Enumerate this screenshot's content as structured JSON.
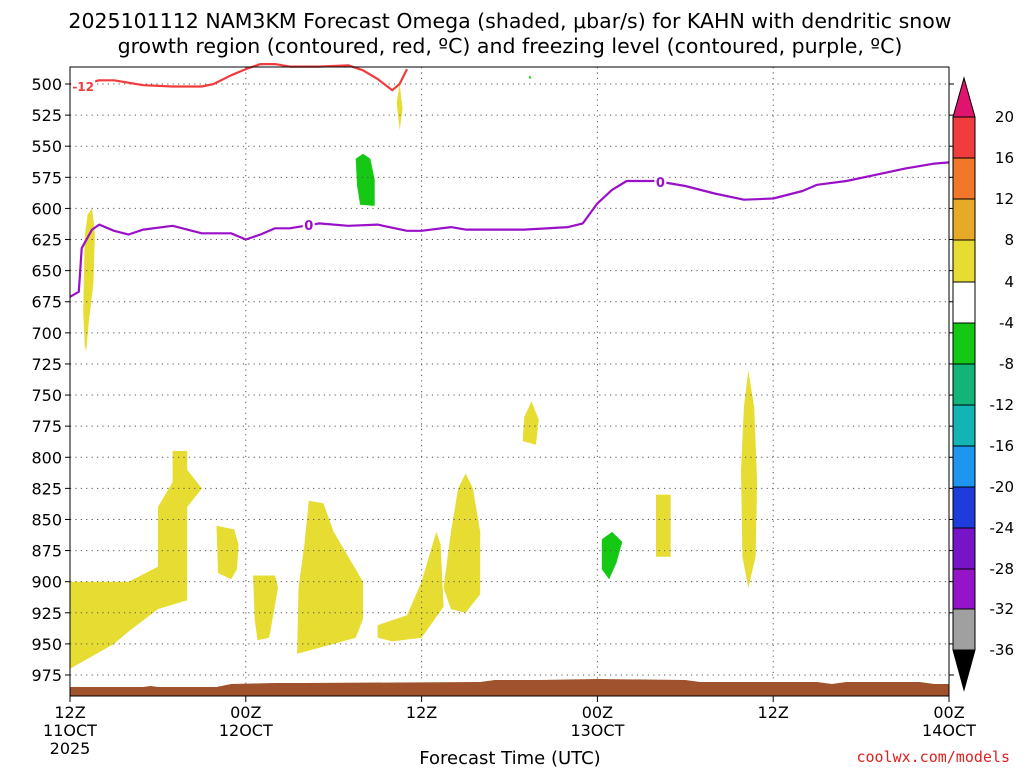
{
  "title_line1": "2025101112 NAM3KM Forecast Omega (shaded, μbar/s) for KAHN with dendritic snow",
  "title_line2": "growth region (contoured, red, ºC) and freezing level (contoured, purple, ºC)",
  "x_axis_title": "Forecast Time (UTC)",
  "credit": "coolwx.com/models",
  "chart_data": {
    "type": "time-height cross section",
    "y_axis": "pressure (mb), inverted",
    "y_ticks": [
      500,
      525,
      550,
      575,
      600,
      625,
      650,
      675,
      700,
      725,
      750,
      775,
      800,
      825,
      850,
      875,
      900,
      925,
      950,
      975
    ],
    "x_range_hours": [
      0,
      60
    ],
    "x_ticks": [
      {
        "hour": 0,
        "line1": "12Z",
        "line2": "11OCT",
        "line3": "2025"
      },
      {
        "hour": 12,
        "line1": "00Z",
        "line2": "12OCT",
        "line3": ""
      },
      {
        "hour": 24,
        "line1": "12Z",
        "line2": "",
        "line3": ""
      },
      {
        "hour": 36,
        "line1": "00Z",
        "line2": "13OCT",
        "line3": ""
      },
      {
        "hour": 48,
        "line1": "12Z",
        "line2": "",
        "line3": ""
      },
      {
        "hour": 60,
        "line1": "00Z",
        "line2": "14OCT",
        "line3": ""
      }
    ],
    "colorbar": {
      "labels": [
        "20",
        "16",
        "12",
        "8",
        "4",
        "-4",
        "-8",
        "-12",
        "-16",
        "-20",
        "-24",
        "-28",
        "-32",
        "-36"
      ],
      "colors": [
        "#e0146e",
        "#f03c3c",
        "#f07828",
        "#e6aa28",
        "#e6dc32",
        "#ffffff",
        "#14c814",
        "#14b478",
        "#14b4b4",
        "#1e96f0",
        "#1e3cdc",
        "#7814c8",
        "#9614c8",
        "#a0a0a0",
        "#000000"
      ]
    },
    "freezing_level": {
      "label": "0",
      "color": "#9a10c8",
      "points": [
        [
          0,
          671
        ],
        [
          0.6,
          667
        ],
        [
          0.8,
          632
        ],
        [
          1.5,
          617
        ],
        [
          2,
          613
        ],
        [
          3,
          618
        ],
        [
          4,
          621
        ],
        [
          5,
          617
        ],
        [
          7,
          614
        ],
        [
          9,
          620
        ],
        [
          11,
          620
        ],
        [
          12,
          625
        ],
        [
          13,
          621
        ],
        [
          14,
          616
        ],
        [
          15,
          616
        ],
        [
          17,
          612
        ],
        [
          19,
          614
        ],
        [
          21,
          613
        ],
        [
          23,
          618
        ],
        [
          24,
          618
        ],
        [
          26,
          615
        ],
        [
          27,
          617
        ],
        [
          29,
          617
        ],
        [
          31,
          617
        ],
        [
          34,
          615
        ],
        [
          35,
          612
        ],
        [
          36,
          596
        ],
        [
          37,
          585
        ],
        [
          38,
          578
        ],
        [
          39,
          578
        ],
        [
          40,
          578
        ],
        [
          42,
          582
        ],
        [
          44,
          588
        ],
        [
          46,
          593
        ],
        [
          48,
          592
        ],
        [
          50,
          586
        ],
        [
          51,
          581
        ],
        [
          53,
          578
        ],
        [
          55,
          573
        ],
        [
          57,
          568
        ],
        [
          58,
          566
        ],
        [
          59,
          564
        ],
        [
          60,
          563
        ]
      ],
      "label_hours": [
        16.3,
        40.3
      ]
    },
    "dgz_contour": {
      "label": "-12",
      "color": "#f03c3c",
      "points": [
        [
          0,
          500
        ],
        [
          1,
          500
        ],
        [
          2,
          497
        ],
        [
          3,
          497
        ],
        [
          5,
          501
        ],
        [
          7,
          502
        ],
        [
          9,
          502
        ],
        [
          9.8,
          500
        ],
        [
          11,
          493
        ],
        [
          12,
          488
        ],
        [
          13,
          484
        ],
        [
          14,
          484
        ],
        [
          15,
          486
        ],
        [
          17,
          486
        ],
        [
          19,
          485
        ],
        [
          20,
          489
        ],
        [
          21,
          496
        ],
        [
          22,
          505
        ],
        [
          22.5,
          500
        ],
        [
          23,
          488
        ]
      ]
    },
    "omega_regions": [
      {
        "value": "4 to 8",
        "color": "#e6dc32",
        "points": [
          [
            0,
            900
          ],
          [
            4,
            900
          ],
          [
            6,
            888
          ],
          [
            6,
            840
          ],
          [
            7,
            820
          ],
          [
            7,
            795
          ],
          [
            8,
            795
          ],
          [
            8,
            810
          ],
          [
            9,
            825
          ],
          [
            8,
            840
          ],
          [
            8,
            915
          ],
          [
            6,
            922
          ],
          [
            4,
            940
          ],
          [
            3,
            950
          ],
          [
            0,
            970
          ]
        ]
      },
      {
        "value": "4 to 8",
        "color": "#e6dc32",
        "points": [
          [
            0.9,
            683
          ],
          [
            1,
            623
          ],
          [
            1.2,
            605
          ],
          [
            1.5,
            600
          ],
          [
            1.7,
            620
          ],
          [
            1.6,
            660
          ],
          [
            1.3,
            690
          ],
          [
            1.1,
            715
          ],
          [
            1,
            710
          ]
        ]
      },
      {
        "value": "4 to 8",
        "color": "#e6dc32",
        "points": [
          [
            10,
            855
          ],
          [
            11.2,
            858
          ],
          [
            11.5,
            870
          ],
          [
            11.4,
            890
          ],
          [
            11,
            898
          ],
          [
            10.1,
            893
          ]
        ]
      },
      {
        "value": "4 to 8",
        "color": "#e6dc32",
        "points": [
          [
            12.5,
            895
          ],
          [
            14,
            895
          ],
          [
            14.2,
            905
          ],
          [
            13.9,
            925
          ],
          [
            13.6,
            945
          ],
          [
            12.8,
            947
          ],
          [
            12.6,
            930
          ]
        ]
      },
      {
        "value": "4 to 8",
        "color": "#e6dc32",
        "points": [
          [
            15.6,
            905
          ],
          [
            16,
            870
          ],
          [
            16.3,
            835
          ],
          [
            17.3,
            837
          ],
          [
            18,
            860
          ],
          [
            19,
            880
          ],
          [
            20,
            900
          ],
          [
            20,
            930
          ],
          [
            19.5,
            945
          ],
          [
            18,
            950
          ],
          [
            15.5,
            958
          ]
        ]
      },
      {
        "value": "4 to 8",
        "color": "#e6dc32",
        "points": [
          [
            21,
            935
          ],
          [
            23,
            927
          ],
          [
            24,
            900
          ],
          [
            24.5,
            880
          ],
          [
            25,
            860
          ],
          [
            25.3,
            870
          ],
          [
            25.5,
            920
          ],
          [
            24,
            945
          ],
          [
            22,
            948
          ],
          [
            21,
            945
          ]
        ]
      },
      {
        "value": "4 to 8",
        "color": "#e6dc32",
        "points": [
          [
            25.5,
            905
          ],
          [
            26,
            860
          ],
          [
            26.5,
            825
          ],
          [
            27,
            813
          ],
          [
            27.5,
            825
          ],
          [
            28,
            860
          ],
          [
            28,
            910
          ],
          [
            27,
            925
          ],
          [
            26,
            922
          ]
        ]
      },
      {
        "value": "4 to 8",
        "color": "#e6dc32",
        "points": [
          [
            30.9,
            787
          ],
          [
            31,
            768
          ],
          [
            31.5,
            755
          ],
          [
            32,
            770
          ],
          [
            31.8,
            790
          ]
        ]
      },
      {
        "value": "4 to 8",
        "color": "#e6dc32",
        "points": [
          [
            40,
            830
          ],
          [
            41,
            830
          ],
          [
            41,
            880
          ],
          [
            40,
            880
          ]
        ]
      },
      {
        "value": "4 to 8",
        "color": "#e6dc32",
        "points": [
          [
            45.8,
            810
          ],
          [
            46,
            760
          ],
          [
            46.3,
            730
          ],
          [
            46.7,
            760
          ],
          [
            46.9,
            820
          ],
          [
            46.8,
            880
          ],
          [
            46.3,
            905
          ],
          [
            45.9,
            880
          ]
        ]
      },
      {
        "value": "4 to 8",
        "color": "#e6dc32",
        "points": [
          [
            22.3,
            515
          ],
          [
            22.5,
            500
          ],
          [
            22.7,
            520
          ],
          [
            22.5,
            537
          ]
        ]
      },
      {
        "value": "-4 to -8",
        "color": "#14c814",
        "points": [
          [
            19.5,
            560
          ],
          [
            20,
            556
          ],
          [
            20.5,
            560
          ],
          [
            20.8,
            577
          ],
          [
            20.8,
            598
          ],
          [
            19.8,
            597
          ],
          [
            19.6,
            582
          ]
        ]
      },
      {
        "value": "-4 to -8",
        "color": "#14c814",
        "points": [
          [
            36.3,
            866
          ],
          [
            37,
            860
          ],
          [
            37.7,
            868
          ],
          [
            37.3,
            885
          ],
          [
            36.8,
            898
          ],
          [
            36.3,
            890
          ]
        ]
      },
      {
        "value": "-4 to -8",
        "color": "#14c814",
        "points": [
          [
            31.3,
            495
          ],
          [
            31.4,
            493
          ],
          [
            31.5,
            496
          ]
        ]
      }
    ],
    "terrain": {
      "color": "#a0522d"
    }
  }
}
